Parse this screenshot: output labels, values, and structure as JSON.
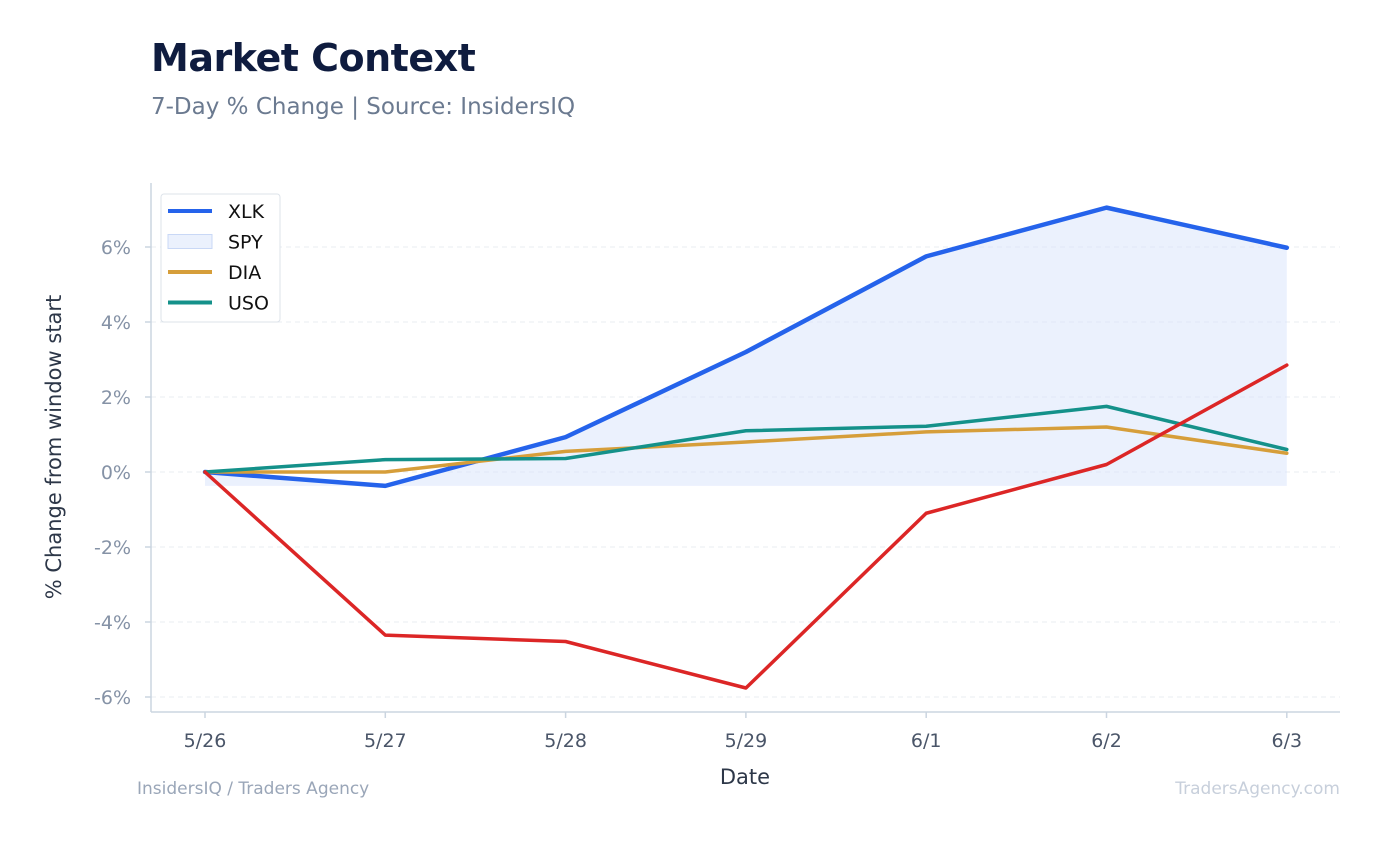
{
  "header": {
    "title": "Market Context",
    "subtitle": "7-Day % Change | Source: InsidersIQ"
  },
  "footer": {
    "left": "InsidersIQ / Traders Agency",
    "right": "TradersAgency.com"
  },
  "chart_data": {
    "type": "line",
    "title": "Market Context",
    "subtitle": "7-Day % Change | Source: InsidersIQ",
    "xlabel": "Date",
    "ylabel": "% Change from window start",
    "categories": [
      "5/26",
      "5/27",
      "5/28",
      "5/29",
      "6/1",
      "6/2",
      "6/3"
    ],
    "yticks": [
      -6,
      -4,
      -2,
      0,
      2,
      4,
      6
    ],
    "ytick_labels": [
      "-6%",
      "-4%",
      "-2%",
      "0%",
      "2%",
      "4%",
      "6%"
    ],
    "ylim": [
      -6.4,
      7.7
    ],
    "grid": true,
    "legend": "top-left",
    "series": [
      {
        "name": "XLK",
        "color": "#2563eb",
        "values": [
          0.0,
          -0.37,
          0.93,
          3.2,
          5.75,
          7.05,
          5.98
        ]
      },
      {
        "name": "SPY",
        "style": "area",
        "color": "#dbe6fb",
        "values": [
          0.0,
          -0.37,
          0.93,
          3.2,
          5.75,
          7.05,
          5.98
        ]
      },
      {
        "name": "DIA",
        "color": "#d69e3a",
        "values": [
          0.0,
          0.0,
          0.55,
          0.8,
          1.07,
          1.2,
          0.5
        ]
      },
      {
        "name": "USO",
        "color": "#14918a",
        "values": [
          0.0,
          0.33,
          0.36,
          1.1,
          1.22,
          1.75,
          0.6
        ]
      },
      {
        "color": "#dc2626",
        "values": [
          0.0,
          -4.35,
          -4.52,
          -5.76,
          -1.1,
          0.2,
          2.85
        ]
      }
    ]
  }
}
